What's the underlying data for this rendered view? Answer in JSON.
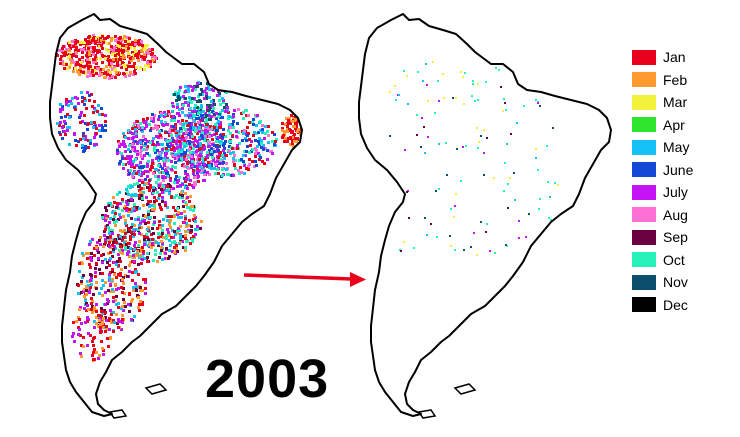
{
  "year": "2003",
  "legend": [
    {
      "label": "Jan",
      "color": "#e8001c"
    },
    {
      "label": "Feb",
      "color": "#ff9a2e"
    },
    {
      "label": "Mar",
      "color": "#f2f23c"
    },
    {
      "label": "Apr",
      "color": "#2ee62e"
    },
    {
      "label": "May",
      "color": "#13c1f5"
    },
    {
      "label": "June",
      "color": "#1449d6"
    },
    {
      "label": "July",
      "color": "#c413f5"
    },
    {
      "label": "Aug",
      "color": "#ff70d6"
    },
    {
      "label": "Sep",
      "color": "#6b0040"
    },
    {
      "label": "Oct",
      "color": "#24f2b8"
    },
    {
      "label": "Nov",
      "color": "#0b4f6c"
    },
    {
      "label": "Dec",
      "color": "#000000"
    }
  ],
  "arrow_color": "#e8001c"
}
